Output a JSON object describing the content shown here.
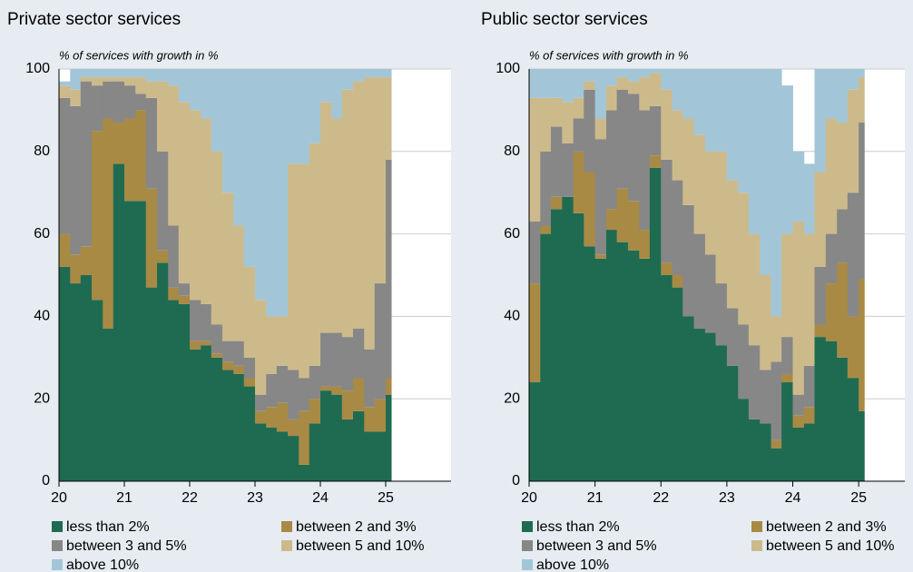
{
  "chart_data": [
    {
      "type": "stacked-step-area",
      "title": "Private sector services",
      "subtitle": "% of services with growth in %",
      "x": [
        20,
        20.17,
        20.33,
        20.5,
        20.67,
        20.83,
        21,
        21.17,
        21.33,
        21.5,
        21.67,
        21.83,
        22,
        22.17,
        22.33,
        22.5,
        22.67,
        22.83,
        23,
        23.17,
        23.33,
        23.5,
        23.67,
        23.83,
        24,
        24.17,
        24.33,
        24.5,
        24.67,
        24.83,
        25
      ],
      "series": [
        {
          "name": "less than 2%",
          "color": "#1f6b52",
          "values": [
            52,
            48,
            50,
            44,
            37,
            77,
            68,
            68,
            47,
            53,
            44,
            43,
            32,
            33,
            30,
            27,
            26,
            23,
            14,
            13,
            12,
            11,
            4,
            14,
            22,
            21,
            15,
            17,
            12,
            12,
            21
          ]
        },
        {
          "name": "between 2 and 3%",
          "color": "#a88a45",
          "values": [
            8,
            7,
            7,
            41,
            51,
            10,
            20,
            22,
            24,
            3,
            3,
            2,
            2,
            1,
            1,
            2,
            2,
            2,
            3,
            5,
            7,
            4,
            13,
            6,
            1,
            2,
            7,
            8,
            6,
            8,
            4
          ]
        },
        {
          "name": "between 3 and 5%",
          "color": "#878787",
          "values": [
            33,
            36,
            40,
            11,
            9,
            10,
            8,
            4,
            22,
            24,
            15,
            3,
            10,
            9,
            7,
            5,
            6,
            5,
            4,
            8,
            9,
            12,
            8,
            8,
            13,
            13,
            13,
            12,
            14,
            28,
            53
          ]
        },
        {
          "name": "between 5 and 10%",
          "color": "#cdba8b",
          "values": [
            3,
            4,
            1,
            2,
            1,
            1,
            2,
            4,
            4,
            17,
            34,
            44,
            46,
            45,
            42,
            36,
            28,
            22,
            23,
            14,
            12,
            50,
            52,
            54,
            56,
            52,
            60,
            60,
            66,
            50,
            20
          ]
        },
        {
          "name": "above 10%",
          "color": "#a2c6d7",
          "values": [
            1,
            5,
            2,
            2,
            2,
            2,
            2,
            2,
            3,
            3,
            4,
            8,
            10,
            12,
            20,
            30,
            38,
            48,
            56,
            60,
            60,
            23,
            23,
            18,
            8,
            12,
            5,
            3,
            2,
            2,
            2
          ]
        }
      ],
      "xlim": [
        20,
        26
      ],
      "ylim": [
        0,
        100
      ],
      "xticks": [
        20,
        21,
        22,
        23,
        24,
        25
      ],
      "yticks": [
        0,
        20,
        40,
        60,
        80,
        100
      ]
    },
    {
      "type": "stacked-step-area",
      "title": "Public sector services",
      "subtitle": "% of services with growth in %",
      "x": [
        20,
        20.17,
        20.33,
        20.5,
        20.67,
        20.83,
        21,
        21.17,
        21.33,
        21.5,
        21.67,
        21.83,
        22,
        22.17,
        22.33,
        22.5,
        22.67,
        22.83,
        23,
        23.17,
        23.33,
        23.5,
        23.67,
        23.83,
        24,
        24.17,
        24.33,
        24.5,
        24.67,
        24.83,
        25
      ],
      "series": [
        {
          "name": "less than 2%",
          "color": "#1f6b52",
          "values": [
            24,
            60,
            66,
            69,
            65,
            57,
            54,
            61,
            58,
            56,
            54,
            76,
            50,
            47,
            40,
            37,
            36,
            33,
            28,
            20,
            15,
            14,
            8,
            24,
            13,
            14,
            35,
            34,
            30,
            25,
            17
          ]
        },
        {
          "name": "between 2 and 3%",
          "color": "#a88a45",
          "values": [
            24,
            2,
            3,
            0,
            15,
            18,
            1,
            5,
            13,
            12,
            7,
            3,
            3,
            3,
            0,
            0,
            0,
            0,
            0,
            0,
            0,
            0,
            2,
            2,
            3,
            4,
            3,
            14,
            23,
            15,
            32
          ]
        },
        {
          "name": "between 3 and 5%",
          "color": "#878787",
          "values": [
            15,
            18,
            17,
            13,
            8,
            20,
            28,
            24,
            24,
            26,
            29,
            12,
            25,
            23,
            27,
            23,
            19,
            15,
            14,
            18,
            18,
            13,
            19,
            9,
            5,
            10,
            14,
            12,
            13,
            30,
            38
          ]
        },
        {
          "name": "between 5 and 10%",
          "color": "#cdba8b",
          "values": [
            30,
            13,
            7,
            10,
            5,
            2,
            5,
            6,
            3,
            3,
            8,
            8,
            17,
            17,
            21,
            24,
            25,
            32,
            31,
            32,
            27,
            23,
            11,
            25,
            42,
            32,
            23,
            28,
            21,
            25,
            11
          ]
        },
        {
          "name": "above 10%",
          "color": "#a2c6d7",
          "values": [
            7,
            7,
            7,
            8,
            7,
            3,
            12,
            4,
            2,
            3,
            2,
            1,
            5,
            10,
            12,
            16,
            20,
            20,
            27,
            30,
            40,
            50,
            60,
            36,
            17,
            17,
            25,
            12,
            13,
            5,
            2
          ]
        }
      ],
      "xlim": [
        20,
        25.7
      ],
      "ylim": [
        0,
        100
      ],
      "xticks": [
        20,
        21,
        22,
        23,
        24,
        25
      ],
      "yticks": [
        0,
        20,
        40,
        60,
        80,
        100
      ]
    }
  ]
}
